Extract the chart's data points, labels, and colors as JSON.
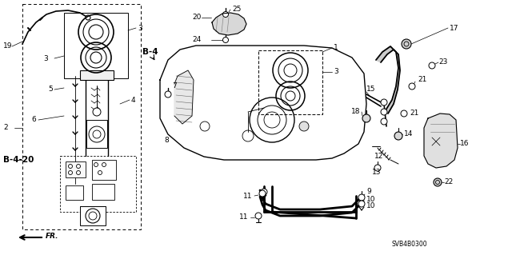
{
  "background_color": "#ffffff",
  "fig_width": 6.4,
  "fig_height": 3.19,
  "dpi": 100,
  "labels": {
    "bottom_left_arrow": "FR.",
    "ref_b4": "B-4",
    "ref_b420": "B-4-20",
    "part_code": "SVB4B0300"
  },
  "font_size": 6.5,
  "font_size_small": 5.5,
  "font_size_bold": 7.5
}
